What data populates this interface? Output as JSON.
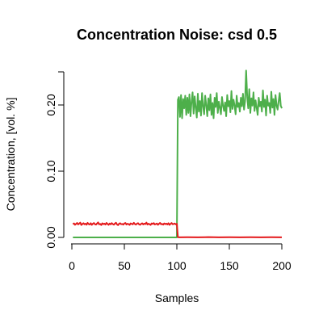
{
  "chart_data": {
    "type": "line",
    "title": "Concentration Noise: csd 0.5",
    "xlabel": "Samples",
    "ylabel": "Concentration, [vol. %]",
    "xlim": [
      0,
      200
    ],
    "ylim": [
      0,
      0.25
    ],
    "xticks": [
      0,
      50,
      100,
      150,
      200
    ],
    "xtick_labels": [
      "0",
      "50",
      "100",
      "150",
      "200"
    ],
    "yticks": [
      0.0,
      0.1,
      0.2
    ],
    "ytick_labels": [
      "0.00",
      "0.10",
      "0.20"
    ],
    "grid": false,
    "legend": "none",
    "series": [
      {
        "color": "#e41a1c",
        "x": [
          1,
          2,
          3,
          4,
          5,
          6,
          7,
          8,
          9,
          10,
          11,
          12,
          13,
          14,
          15,
          16,
          17,
          18,
          19,
          20,
          21,
          22,
          23,
          24,
          25,
          26,
          27,
          28,
          29,
          30,
          31,
          32,
          33,
          34,
          35,
          36,
          37,
          38,
          39,
          40,
          41,
          42,
          43,
          44,
          45,
          46,
          47,
          48,
          49,
          50,
          51,
          52,
          53,
          54,
          55,
          56,
          57,
          58,
          59,
          60,
          61,
          62,
          63,
          64,
          65,
          66,
          67,
          68,
          69,
          70,
          71,
          72,
          73,
          74,
          75,
          76,
          77,
          78,
          79,
          80,
          81,
          82,
          83,
          84,
          85,
          86,
          87,
          88,
          89,
          90,
          91,
          92,
          93,
          94,
          95,
          96,
          97,
          98,
          99,
          100,
          101,
          102,
          110,
          120,
          130,
          140,
          150,
          160,
          170,
          180,
          190,
          200
        ],
        "values": [
          0.02,
          0.0212,
          0.0191,
          0.0205,
          0.0218,
          0.0196,
          0.0209,
          0.0223,
          0.0188,
          0.0202,
          0.0215,
          0.0198,
          0.0207,
          0.0192,
          0.022,
          0.0201,
          0.0195,
          0.0214,
          0.0189,
          0.0206,
          0.0217,
          0.0199,
          0.0193,
          0.0211,
          0.0226,
          0.0197,
          0.0204,
          0.0187,
          0.0213,
          0.02,
          0.0208,
          0.0194,
          0.0219,
          0.0203,
          0.019,
          0.021,
          0.0197,
          0.0216,
          0.0201,
          0.0192,
          0.0209,
          0.0222,
          0.0196,
          0.0185,
          0.0207,
          0.0214,
          0.0199,
          0.0203,
          0.0193,
          0.0211,
          0.0218,
          0.0195,
          0.0206,
          0.02,
          0.0189,
          0.0212,
          0.0204,
          0.0197,
          0.0221,
          0.0202,
          0.0193,
          0.0208,
          0.0215,
          0.0198,
          0.019,
          0.0205,
          0.0213,
          0.0196,
          0.0209,
          0.0201,
          0.0224,
          0.0194,
          0.0207,
          0.0199,
          0.0188,
          0.0211,
          0.0203,
          0.0216,
          0.0195,
          0.0202,
          0.021,
          0.0191,
          0.0206,
          0.0219,
          0.0198,
          0.0204,
          0.0193,
          0.0212,
          0.02,
          0.0208,
          0.0196,
          0.0214,
          0.0189,
          0.0205,
          0.0217,
          0.0199,
          0.0203,
          0.021,
          0.0197,
          0.0205,
          0.0005,
          0.0002,
          0.0003,
          0.0002,
          0.0004,
          0.0002,
          0.0003,
          0.0002,
          0.0003,
          0.0002,
          0.0003,
          0.0002
        ]
      },
      {
        "color": "#4daf4a",
        "x": [
          1,
          100,
          101,
          102,
          103,
          104,
          105,
          106,
          107,
          108,
          109,
          110,
          111,
          112,
          113,
          114,
          115,
          116,
          117,
          118,
          119,
          120,
          121,
          122,
          123,
          124,
          125,
          126,
          127,
          128,
          129,
          130,
          131,
          132,
          133,
          134,
          135,
          136,
          137,
          138,
          139,
          140,
          141,
          142,
          143,
          144,
          145,
          146,
          147,
          148,
          149,
          150,
          151,
          152,
          153,
          154,
          155,
          156,
          157,
          158,
          159,
          160,
          161,
          162,
          163,
          164,
          165,
          166,
          167,
          168,
          169,
          170,
          171,
          172,
          173,
          174,
          175,
          176,
          177,
          178,
          179,
          180,
          181,
          182,
          183,
          184,
          185,
          186,
          187,
          188,
          189,
          190,
          191,
          192,
          193,
          194,
          195,
          196,
          197,
          198,
          199,
          200
        ],
        "values": [
          0.0,
          0.0,
          0.208,
          0.212,
          0.182,
          0.215,
          0.18,
          0.209,
          0.195,
          0.214,
          0.185,
          0.211,
          0.188,
          0.216,
          0.183,
          0.205,
          0.219,
          0.187,
          0.213,
          0.196,
          0.181,
          0.217,
          0.19,
          0.206,
          0.184,
          0.218,
          0.198,
          0.186,
          0.214,
          0.2,
          0.183,
          0.21,
          0.192,
          0.216,
          0.185,
          0.203,
          0.18,
          0.211,
          0.197,
          0.218,
          0.188,
          0.205,
          0.196,
          0.186,
          0.212,
          0.199,
          0.191,
          0.204,
          0.183,
          0.215,
          0.198,
          0.206,
          0.189,
          0.221,
          0.194,
          0.208,
          0.199,
          0.186,
          0.214,
          0.197,
          0.203,
          0.19,
          0.211,
          0.198,
          0.217,
          0.193,
          0.206,
          0.252,
          0.213,
          0.195,
          0.224,
          0.188,
          0.21,
          0.199,
          0.219,
          0.191,
          0.207,
          0.196,
          0.185,
          0.211,
          0.198,
          0.205,
          0.19,
          0.222,
          0.197,
          0.208,
          0.184,
          0.214,
          0.199,
          0.203,
          0.188,
          0.22,
          0.196,
          0.209,
          0.185,
          0.215,
          0.199,
          0.193,
          0.206,
          0.218,
          0.199,
          0.195
        ]
      }
    ]
  }
}
